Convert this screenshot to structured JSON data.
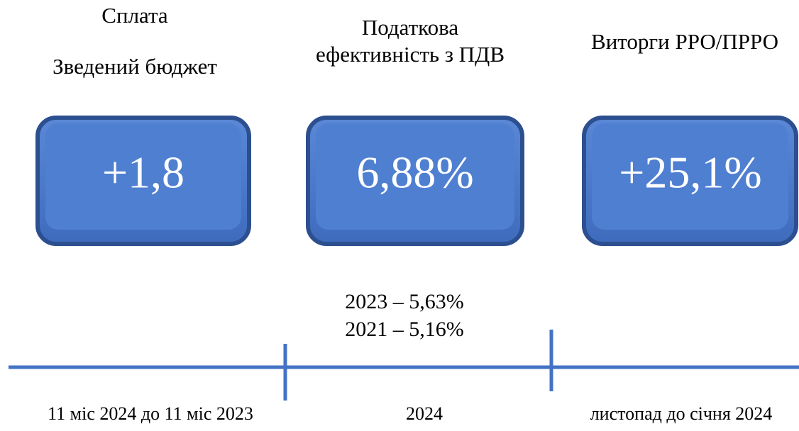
{
  "columns": [
    {
      "title": [
        "Сплата",
        "Зведений бюджет"
      ],
      "value": "+1,8",
      "period": "11 міс 2024 до 11 міс 2023"
    },
    {
      "title": [
        "Податкова",
        "ефективність з ПДВ"
      ],
      "value": "6,88%",
      "notes": [
        "2023 – 5,63%",
        "2021 – 5,16%"
      ],
      "period": "2024"
    },
    {
      "title": [
        "Виторги РРО/ПРРО"
      ],
      "value": "+25,1%",
      "period": "листопад до січня 2024"
    }
  ]
}
